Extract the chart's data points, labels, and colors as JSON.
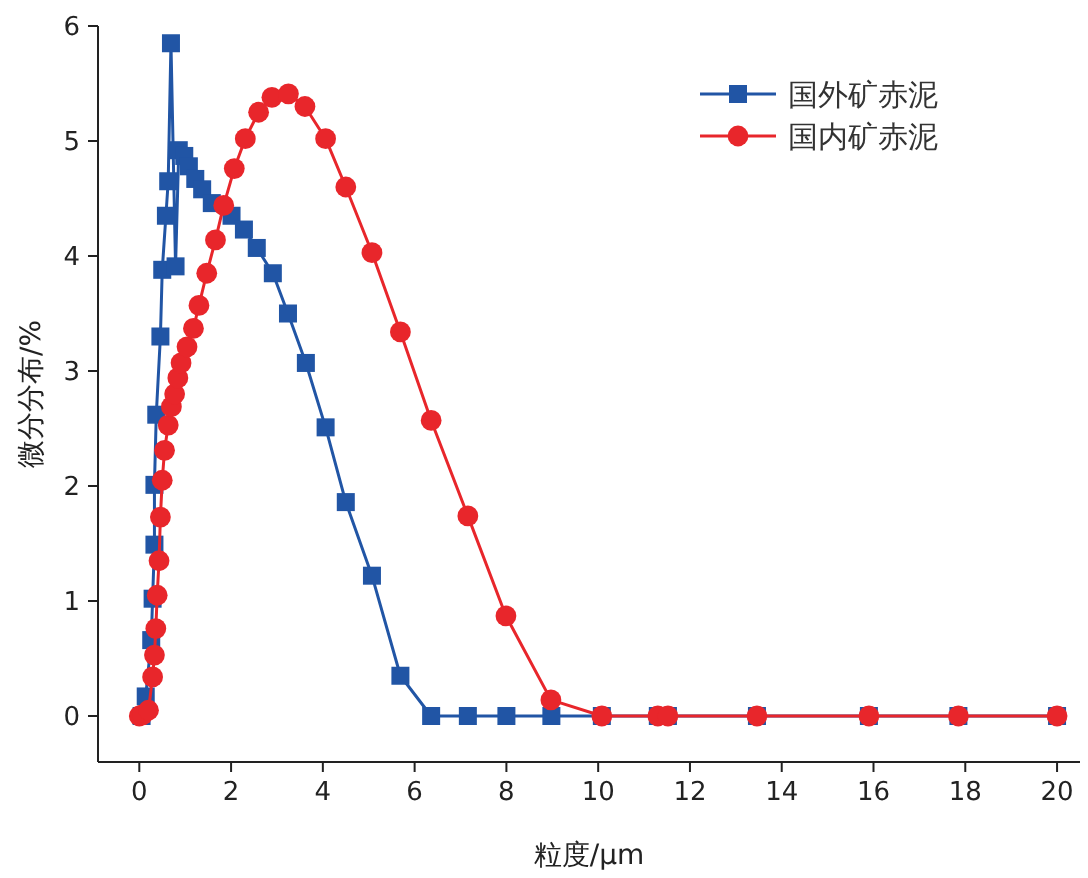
{
  "chart_data": {
    "type": "line",
    "xlabel": "粒度/μm",
    "ylabel": "微分分布/%",
    "xlim": [
      -0.9,
      20.5
    ],
    "ylim": [
      -0.4,
      6
    ],
    "xticks": [
      0,
      2,
      4,
      6,
      8,
      10,
      12,
      14,
      16,
      18,
      20
    ],
    "yticks": [
      0,
      1,
      2,
      3,
      4,
      5,
      6
    ],
    "grid": false,
    "legend": "top right",
    "line_style": "solid",
    "series": [
      {
        "name": "国外矿赤泥",
        "color": "#2155a5",
        "marker": "square",
        "x": [
          0.05,
          0.14,
          0.26,
          0.29,
          0.33,
          0.33,
          0.37,
          0.46,
          0.5,
          0.58,
          0.63,
          0.69,
          0.79,
          0.86,
          0.98,
          1.08,
          1.22,
          1.37,
          1.58,
          2.01,
          2.28,
          2.56,
          2.91,
          3.24,
          3.63,
          4.06,
          4.5,
          5.07,
          5.69,
          6.36,
          7.16,
          8.0,
          8.98,
          10.08,
          11.3,
          11.52,
          13.46,
          15.9,
          17.85,
          20.0
        ],
        "values": [
          0,
          0.17,
          0.66,
          1.02,
          1.49,
          2.01,
          2.62,
          3.3,
          3.88,
          4.35,
          4.65,
          5.85,
          3.91,
          4.92,
          4.87,
          4.78,
          4.67,
          4.58,
          4.46,
          4.35,
          4.23,
          4.07,
          3.85,
          3.5,
          3.07,
          2.51,
          1.86,
          1.22,
          0.35,
          0,
          0,
          0,
          0,
          0,
          0,
          0,
          0,
          0,
          0,
          0
        ]
      },
      {
        "name": "国内矿赤泥",
        "color": "#e8262b",
        "marker": "circle",
        "x": [
          0.0,
          0.07,
          0.2,
          0.29,
          0.33,
          0.36,
          0.39,
          0.43,
          0.46,
          0.5,
          0.55,
          0.63,
          0.7,
          0.77,
          0.84,
          0.91,
          1.04,
          1.18,
          1.3,
          1.47,
          1.66,
          1.84,
          2.07,
          2.31,
          2.6,
          2.89,
          3.25,
          3.61,
          4.06,
          4.5,
          5.07,
          5.69,
          6.36,
          7.16,
          7.99,
          8.97,
          10.08,
          11.3,
          11.52,
          13.46,
          15.9,
          17.85,
          20.0
        ],
        "values": [
          0,
          0.01,
          0.05,
          0.34,
          0.53,
          0.76,
          1.05,
          1.35,
          1.73,
          2.05,
          2.31,
          2.53,
          2.69,
          2.8,
          2.94,
          3.07,
          3.21,
          3.37,
          3.57,
          3.85,
          4.14,
          4.44,
          4.76,
          5.02,
          5.25,
          5.38,
          5.41,
          5.3,
          5.02,
          4.6,
          4.03,
          3.34,
          2.57,
          1.74,
          0.87,
          0.14,
          0,
          0,
          0,
          0,
          0,
          0,
          0
        ]
      }
    ]
  }
}
